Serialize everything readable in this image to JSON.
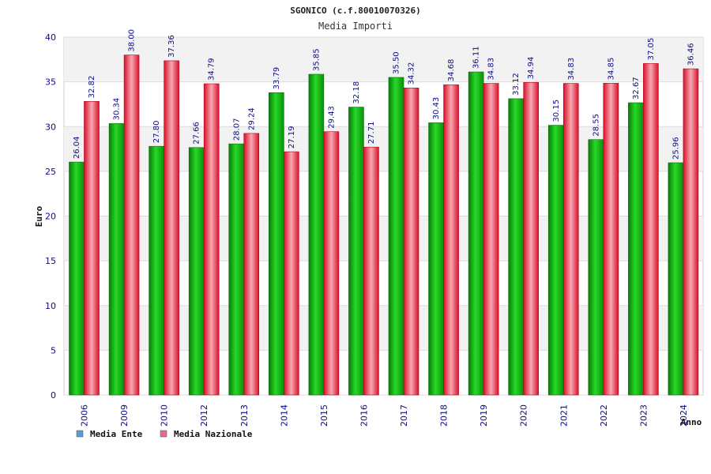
{
  "chart_data": {
    "type": "bar",
    "title": "SGONICO (c.f.80010070326)",
    "subtitle": "Media Importi",
    "xlabel": "Anno",
    "ylabel": "Euro",
    "ylim": [
      0,
      40
    ],
    "yticks": [
      0,
      5,
      10,
      15,
      20,
      25,
      30,
      35,
      40
    ],
    "grid": true,
    "legend_position": "bottom-left",
    "categories": [
      "2006",
      "2009",
      "2010",
      "2012",
      "2013",
      "2014",
      "2015",
      "2016",
      "2017",
      "2018",
      "2019",
      "2020",
      "2021",
      "2022",
      "2023",
      "2024"
    ],
    "series": [
      {
        "name": "Media Ente",
        "color": "#1fbf1f",
        "legend_color": "#5b9bd5",
        "values": [
          26.04,
          30.34,
          27.8,
          27.66,
          28.07,
          33.79,
          35.85,
          32.18,
          35.5,
          30.43,
          36.11,
          33.12,
          30.15,
          28.55,
          32.67,
          25.96
        ],
        "labels": [
          "26.04",
          "30.34",
          "27.80",
          "27.66",
          "28.07",
          "33.79",
          "35.85",
          "32.18",
          "35.50",
          "30.43",
          "36.11",
          "33.12",
          "30.15",
          "28.55",
          "32.67",
          "25.96"
        ]
      },
      {
        "name": "Media Nazionale",
        "color": "#e8283a",
        "legend_color": "#e06aa0",
        "values": [
          32.82,
          38.0,
          37.36,
          34.79,
          29.24,
          27.19,
          29.43,
          27.71,
          34.32,
          34.68,
          34.83,
          34.94,
          34.83,
          34.85,
          37.05,
          36.46
        ],
        "labels": [
          "32.82",
          "38.00",
          "37.36",
          "34.79",
          "29.24",
          "27.19",
          "29.43",
          "27.71",
          "34.32",
          "34.68",
          "34.83",
          "34.94",
          "34.83",
          "34.85",
          "37.05",
          "36.46"
        ]
      }
    ]
  }
}
